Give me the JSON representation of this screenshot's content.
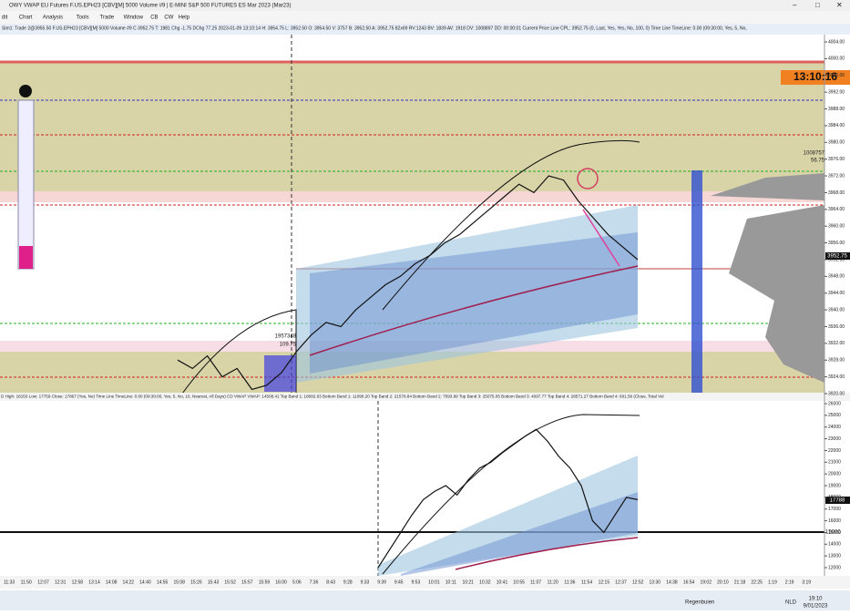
{
  "window": {
    "title": "OWY VWAP EU Futures F.US.EPH23 [CBV][M] 5000 Volume #9 | E-MINI S&P 500 FUTURES ES Mar 2023 (Mar23)",
    "menu": [
      "dit",
      "Chart",
      "Analysis",
      "Tools",
      "Trade",
      "Window",
      "CB",
      "CW",
      "Help"
    ],
    "status": "Sim1: Trade 2@3955.50 F.US.EPH23 [CBV][M] 5000 Volume #9 C 3952.75 T: 1981 Chg -1.75 DChg 77.25 2023-01-09 13:10:14 H: 3954.75 L: 3952.50 O: 3954.50 V: 3757 B: 3952.50 A: 3952.75 82x69 RV:1243 BV: 1839 AV: 1918 DV: 1008897 DD: 00:00:01 Current Price Line CPL: 3952.75 (0, Last, Yes, Yes, No, 100, 0) Time Line TimeLine: 0.00 (09:30:00, Yes, 5, No,"
  },
  "main_chart": {
    "clock": "13:10:16",
    "price_label": "3952.75",
    "volume_label": "1008757",
    "volume_sub": "56.75",
    "left_volume_label": "1957348",
    "left_volume_sub": "109.75",
    "ylim": [
      3920,
      4004
    ],
    "yticks": [
      {
        "value": 4004,
        "label": "4004.00"
      },
      {
        "value": 4000,
        "label": "4000.00"
      },
      {
        "value": 3996,
        "label": "3996.00"
      },
      {
        "value": 3992,
        "label": "3992.00"
      },
      {
        "value": 3988,
        "label": "3988.00"
      },
      {
        "value": 3984,
        "label": "3984.00"
      },
      {
        "value": 3980,
        "label": "3980.00"
      },
      {
        "value": 3976,
        "label": "3976.00"
      },
      {
        "value": 3972,
        "label": "3972.00"
      },
      {
        "value": 3968,
        "label": "3968.00"
      },
      {
        "value": 3964,
        "label": "3964.00"
      },
      {
        "value": 3960,
        "label": "3960.00"
      },
      {
        "value": 3956,
        "label": "3956.00"
      },
      {
        "value": 3952,
        "label": "3952.00"
      },
      {
        "value": 3948,
        "label": "3948.00"
      },
      {
        "value": 3944,
        "label": "3944.00"
      },
      {
        "value": 3940,
        "label": "3940.00"
      },
      {
        "value": 3936,
        "label": "3936.00"
      },
      {
        "value": 3932,
        "label": "3932.00"
      },
      {
        "value": 3928,
        "label": "3928.00"
      },
      {
        "value": 3924,
        "label": "3924.00"
      },
      {
        "value": 3920,
        "label": "3920.00"
      }
    ],
    "closes": [
      3928,
      3926,
      3929,
      3924,
      3926,
      3921,
      3922,
      3925,
      3930,
      3934,
      3937,
      3936,
      3940,
      3943,
      3946,
      3948,
      3951,
      3953,
      3956,
      3958,
      3961,
      3964,
      3967,
      3970,
      3968,
      3972,
      3971,
      3966,
      3962,
      3958,
      3955,
      3952
    ]
  },
  "status_bar": "D  High: 18150  Low: 17759  Close: 17867  (Yes, No)  Time Line TimeLine: 0.00  (09:30:00, Yes, 5, No, 10, Nearest, All Days)  CD VWAP  VWAP: 14508.41  Top Band 1: 18082.63  Bottom Band 1: 11090.20  Top Band 2: 21578.84  Bottom Band 2: 7593.99  Top Band 3: 25075.05  Bottom Band 3: 4097.77  Top Band 4: 28571.27  Bottom Band 4: 601.56  (Close, Total Vol",
  "lower_chart": {
    "value_label": "17788",
    "line_label": "15000",
    "ylim": [
      12000,
      26000
    ],
    "yticks": [
      26000,
      25000,
      24000,
      23000,
      22000,
      21000,
      20000,
      19000,
      18000,
      17000,
      16000,
      15000,
      14000,
      13000,
      12000
    ],
    "closes": [
      12000,
      13500,
      15000,
      16500,
      17800,
      18500,
      19000,
      18200,
      19500,
      20500,
      21000,
      21800,
      22500,
      23200,
      23800,
      22800,
      21500,
      20500,
      19000,
      16000,
      15000,
      16500,
      18000,
      17800
    ]
  },
  "time_axis": [
    "11:33",
    "11:50",
    "12:07",
    "12:31",
    "12:58",
    "13:14",
    "14:08",
    "14:22",
    "14:40",
    "14:55",
    "15:08",
    "15:26",
    "15:43",
    "15:52",
    "15:57",
    "15:59",
    "16:00",
    "5:06",
    "7:36",
    "8:43",
    "9:28",
    "9:33",
    "9:39",
    "9:45",
    "9:53",
    "10:01",
    "10:11",
    "10:21",
    "10:32",
    "10:41",
    "10:55",
    "11:07",
    "11:20",
    "11:36",
    "11:54",
    "12:15",
    "12:37",
    "12:52",
    "13:30",
    "14:38",
    "16:54",
    "19:02",
    "20:10",
    "21:18",
    "22:25",
    "1:19",
    "2:19",
    "3:19"
  ],
  "taskbar": {
    "weather": "Regenbuien",
    "lang": "NLD",
    "time": "19:10",
    "date": "9/01/2023"
  }
}
